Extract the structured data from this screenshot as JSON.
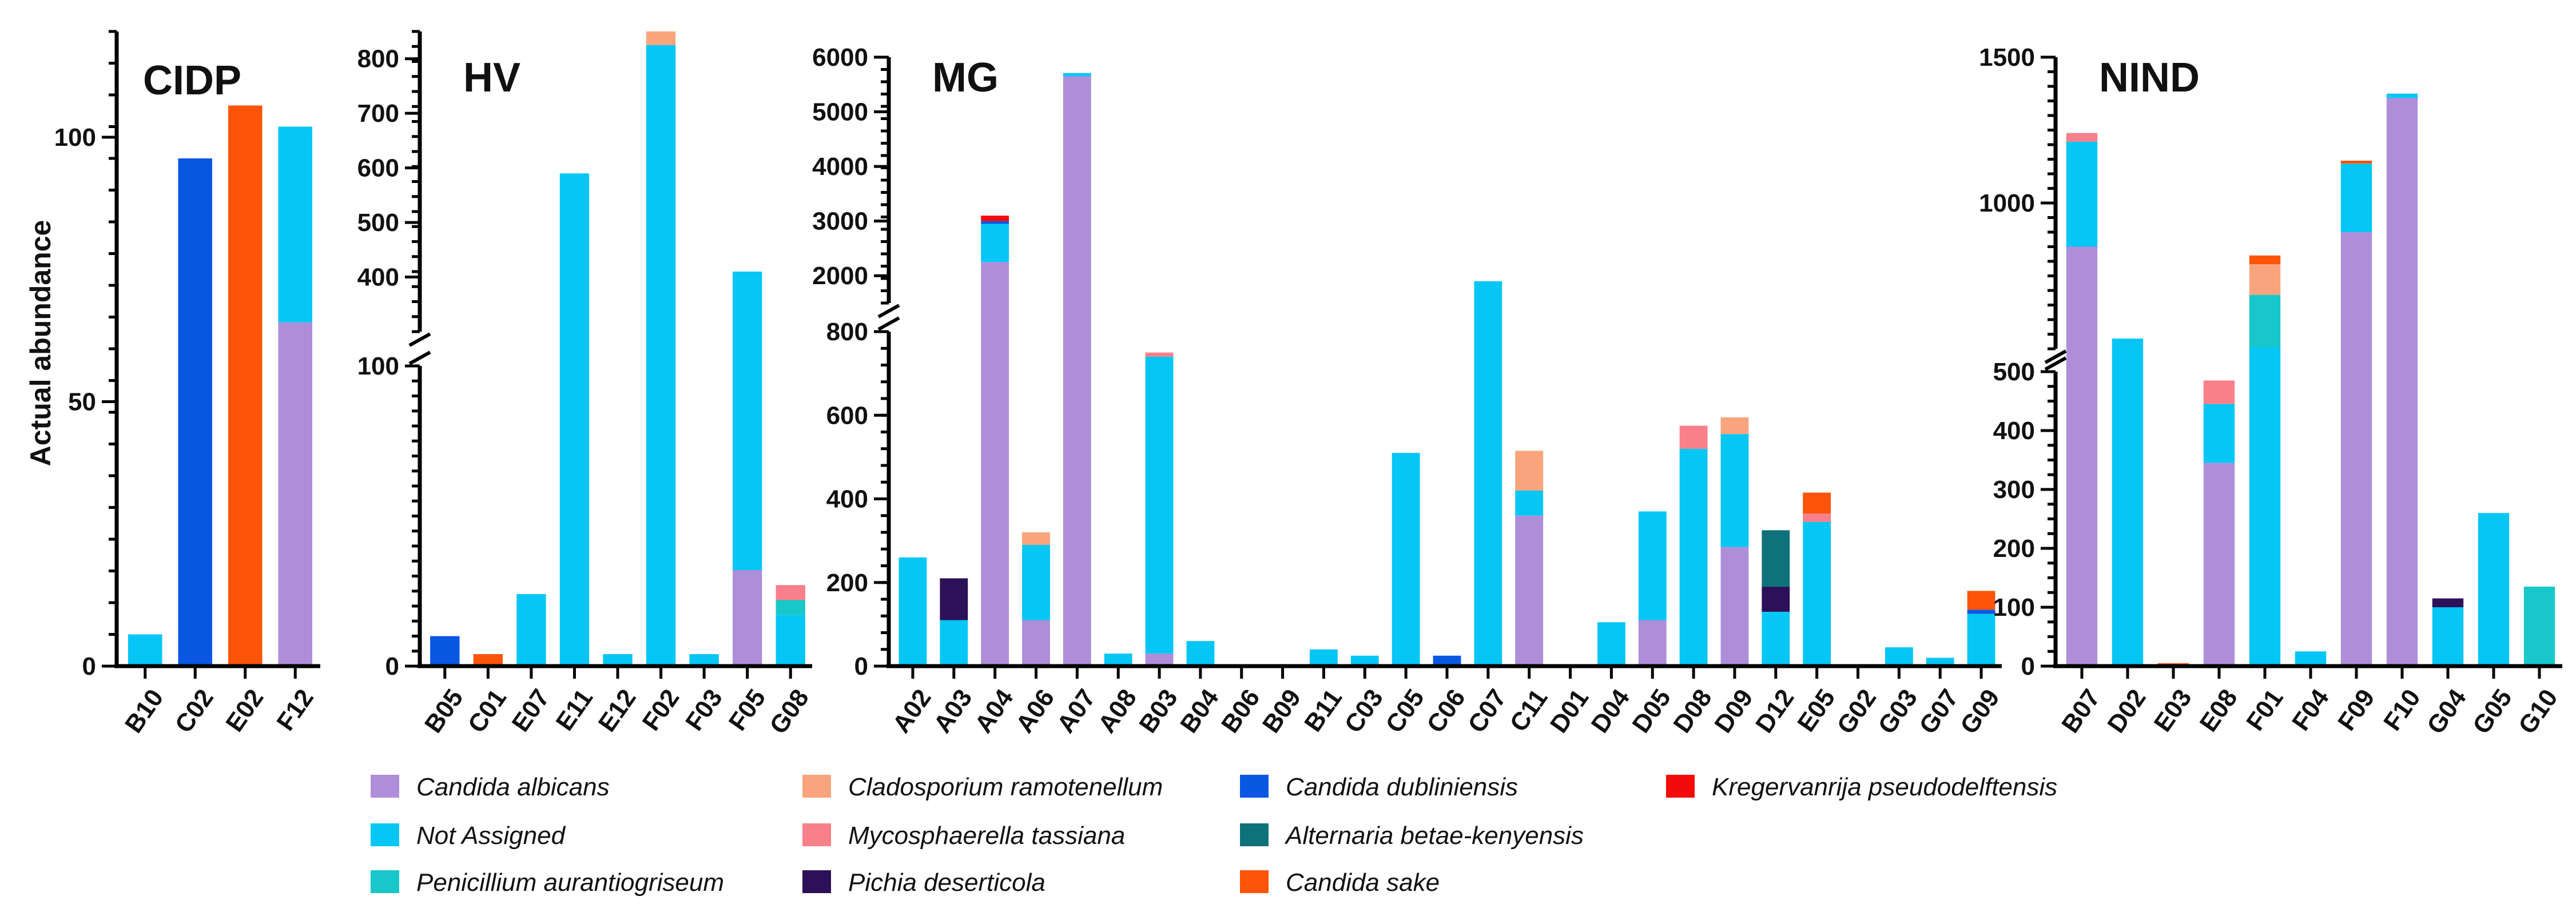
{
  "chart_data": {
    "type": "bar",
    "stacked": true,
    "ylabel": "Actual abundance",
    "species": [
      {
        "name": "Candida albicans",
        "color": "#ae8ed8"
      },
      {
        "name": "Not Assigned",
        "color": "#05c6f5"
      },
      {
        "name": "Penicillium aurantiogriseum",
        "color": "#18c7c9"
      },
      {
        "name": "Cladosporium ramotenellum",
        "color": "#f9a47c"
      },
      {
        "name": "Mycosphaerella tassiana",
        "color": "#f7808a"
      },
      {
        "name": "Pichia deserticola",
        "color": "#2c1158"
      },
      {
        "name": "Candida dubliniensis",
        "color": "#0a57e4"
      },
      {
        "name": "Alternaria betae-kenyensis",
        "color": "#0f727a"
      },
      {
        "name": "Candida sake",
        "color": "#fc5408"
      },
      {
        "name": "Kregervanrija pseudodelftensis",
        "color": "#f30b0b"
      }
    ],
    "panels": [
      {
        "title": "CIDP",
        "ylim": [
          0,
          120
        ],
        "yticks": [
          0,
          50,
          100
        ],
        "categories": [
          "B10",
          "C02",
          "E02",
          "F12"
        ],
        "stacks": [
          [
            {
              "sp": 1,
              "v": 6
            }
          ],
          [
            {
              "sp": 6,
              "v": 96
            }
          ],
          [
            {
              "sp": 8,
              "v": 106
            }
          ],
          [
            {
              "sp": 0,
              "v": 65
            },
            {
              "sp": 1,
              "v": 37
            }
          ]
        ]
      },
      {
        "title": "HV",
        "broken_axis": true,
        "ylim_lower": [
          0,
          100
        ],
        "ylim_upper": [
          300,
          850
        ],
        "yticks_lower": [
          0,
          100
        ],
        "yticks_upper": [
          400,
          500,
          600,
          700,
          800
        ],
        "categories": [
          "B05",
          "C01",
          "E07",
          "E11",
          "E12",
          "F02",
          "F03",
          "F05",
          "G08"
        ],
        "stacks": [
          [
            {
              "sp": 6,
              "v": 10
            }
          ],
          [
            {
              "sp": 8,
              "v": 4
            }
          ],
          [
            {
              "sp": 1,
              "v": 24
            }
          ],
          [
            {
              "sp": 1,
              "v": 590
            }
          ],
          [
            {
              "sp": 1,
              "v": 4
            }
          ],
          [
            {
              "sp": 1,
              "v": 825
            },
            {
              "sp": 3,
              "v": 25
            }
          ],
          [
            {
              "sp": 1,
              "v": 4
            }
          ],
          [
            {
              "sp": 0,
              "v": 32
            },
            {
              "sp": 1,
              "v": 378
            }
          ],
          [
            {
              "sp": 1,
              "v": 17
            },
            {
              "sp": 2,
              "v": 5
            },
            {
              "sp": 4,
              "v": 5
            }
          ]
        ]
      },
      {
        "title": "MG",
        "broken_axis": true,
        "ylim_lower": [
          0,
          800
        ],
        "ylim_upper": [
          1500,
          6000
        ],
        "yticks_lower": [
          0,
          200,
          400,
          600,
          800
        ],
        "yticks_upper": [
          2000,
          3000,
          4000,
          5000,
          6000
        ],
        "categories": [
          "A02",
          "A03",
          "A04",
          "A06",
          "A07",
          "A08",
          "B03",
          "B04",
          "B06",
          "B09",
          "B11",
          "C03",
          "C05",
          "C06",
          "C07",
          "C11",
          "D01",
          "D04",
          "D05",
          "D08",
          "D09",
          "D12",
          "E05",
          "G02",
          "G03",
          "G07",
          "G09"
        ],
        "stacks": [
          [
            {
              "sp": 1,
              "v": 260
            }
          ],
          [
            {
              "sp": 1,
              "v": 110
            },
            {
              "sp": 5,
              "v": 100
            }
          ],
          [
            {
              "sp": 0,
              "v": 2250
            },
            {
              "sp": 1,
              "v": 700
            },
            {
              "sp": 6,
              "v": 50
            },
            {
              "sp": 9,
              "v": 100
            }
          ],
          [
            {
              "sp": 0,
              "v": 110
            },
            {
              "sp": 1,
              "v": 180
            },
            {
              "sp": 3,
              "v": 30
            }
          ],
          [
            {
              "sp": 0,
              "v": 5650
            },
            {
              "sp": 1,
              "v": 60
            }
          ],
          [
            {
              "sp": 1,
              "v": 30
            }
          ],
          [
            {
              "sp": 0,
              "v": 30
            },
            {
              "sp": 1,
              "v": 710
            },
            {
              "sp": 4,
              "v": 10
            }
          ],
          [
            {
              "sp": 1,
              "v": 60
            }
          ],
          [],
          [],
          [
            {
              "sp": 1,
              "v": 40
            }
          ],
          [
            {
              "sp": 1,
              "v": 25
            }
          ],
          [
            {
              "sp": 1,
              "v": 510
            }
          ],
          [
            {
              "sp": 6,
              "v": 25
            }
          ],
          [
            {
              "sp": 1,
              "v": 1900
            }
          ],
          [
            {
              "sp": 0,
              "v": 360
            },
            {
              "sp": 1,
              "v": 60
            },
            {
              "sp": 3,
              "v": 95
            }
          ],
          [],
          [
            {
              "sp": 1,
              "v": 105
            }
          ],
          [
            {
              "sp": 0,
              "v": 110
            },
            {
              "sp": 1,
              "v": 260
            }
          ],
          [
            {
              "sp": 1,
              "v": 520
            },
            {
              "sp": 4,
              "v": 55
            }
          ],
          [
            {
              "sp": 0,
              "v": 285
            },
            {
              "sp": 1,
              "v": 270
            },
            {
              "sp": 3,
              "v": 40
            }
          ],
          [
            {
              "sp": 1,
              "v": 130
            },
            {
              "sp": 5,
              "v": 60
            },
            {
              "sp": 7,
              "v": 135
            }
          ],
          [
            {
              "sp": 1,
              "v": 345
            },
            {
              "sp": 4,
              "v": 20
            },
            {
              "sp": 8,
              "v": 50
            }
          ],
          [],
          [
            {
              "sp": 1,
              "v": 45
            }
          ],
          [
            {
              "sp": 1,
              "v": 20
            }
          ],
          [
            {
              "sp": 1,
              "v": 125
            },
            {
              "sp": 6,
              "v": 10
            },
            {
              "sp": 8,
              "v": 45
            }
          ]
        ]
      },
      {
        "title": "NIND",
        "broken_axis": true,
        "ylim_lower": [
          0,
          500
        ],
        "ylim_upper": [
          500,
          1500
        ],
        "yticks_lower": [
          0,
          100,
          200,
          300,
          400,
          500
        ],
        "yticks_upper": [
          500,
          1000,
          1500
        ],
        "categories": [
          "B07",
          "D02",
          "E03",
          "E08",
          "F01",
          "F04",
          "F09",
          "F10",
          "G04",
          "G05",
          "G10"
        ],
        "stacks": [
          [
            {
              "sp": 0,
              "v": 850
            },
            {
              "sp": 1,
              "v": 360
            },
            {
              "sp": 4,
              "v": 30
            }
          ],
          [
            {
              "sp": 1,
              "v": 535
            }
          ],
          [
            {
              "sp": 8,
              "v": 5
            }
          ],
          [
            {
              "sp": 0,
              "v": 345
            },
            {
              "sp": 1,
              "v": 100
            },
            {
              "sp": 4,
              "v": 40
            }
          ],
          [
            {
              "sp": 1,
              "v": 505
            },
            {
              "sp": 2,
              "v": 180
            },
            {
              "sp": 3,
              "v": 105
            },
            {
              "sp": 8,
              "v": 30
            }
          ],
          [
            {
              "sp": 1,
              "v": 25
            }
          ],
          [
            {
              "sp": 0,
              "v": 900
            },
            {
              "sp": 1,
              "v": 235
            },
            {
              "sp": 8,
              "v": 10
            }
          ],
          [
            {
              "sp": 0,
              "v": 1360
            },
            {
              "sp": 1,
              "v": 15
            }
          ],
          [
            {
              "sp": 1,
              "v": 100
            },
            {
              "sp": 5,
              "v": 15
            }
          ],
          [
            {
              "sp": 1,
              "v": 260
            }
          ],
          [
            {
              "sp": 2,
              "v": 135
            }
          ]
        ]
      }
    ]
  }
}
